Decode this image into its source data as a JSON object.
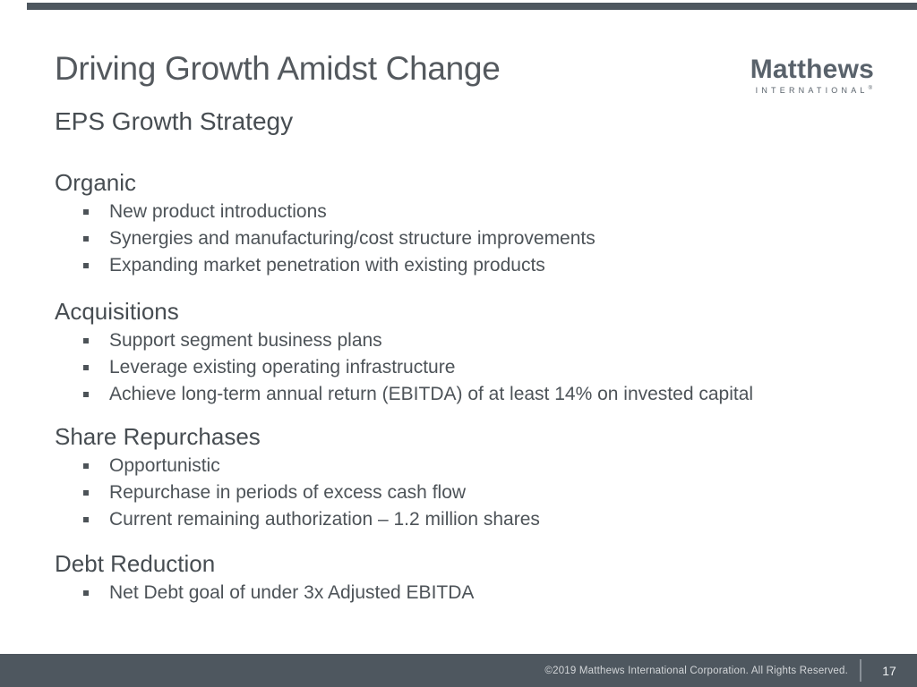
{
  "slide": {
    "title": "Driving Growth Amidst Change",
    "subtitle": "EPS Growth Strategy",
    "sections": [
      {
        "heading": "Organic",
        "bullets": [
          "New product introductions",
          "Synergies and manufacturing/cost structure improvements",
          "Expanding market penetration with existing products"
        ]
      },
      {
        "heading": "Acquisitions",
        "bullets": [
          "Support segment business plans",
          "Leverage existing operating infrastructure",
          "Achieve long-term annual return (EBITDA) of at least 14% on invested capital"
        ]
      },
      {
        "heading": "Share Repurchases",
        "bullets": [
          "Opportunistic",
          "Repurchase in periods of excess cash flow",
          "Current remaining authorization – 1.2 million shares"
        ]
      },
      {
        "heading": "Debt Reduction",
        "bullets": [
          "Net Debt goal of under 3x Adjusted EBITDA"
        ]
      }
    ]
  },
  "logo": {
    "name": "Matthews",
    "subtext": "INTERNATIONAL",
    "registered": "®"
  },
  "footer": {
    "copyright": "©2019 Matthews International Corporation. All Rights Reserved.",
    "page_number": "17"
  },
  "colors": {
    "accent_bar": "#4e575f",
    "footer_bar": "#4e575f",
    "title_text": "#54595e",
    "body_text": "#4d5358",
    "footer_text": "#d2d5d8",
    "logo_text": "#59626b"
  }
}
